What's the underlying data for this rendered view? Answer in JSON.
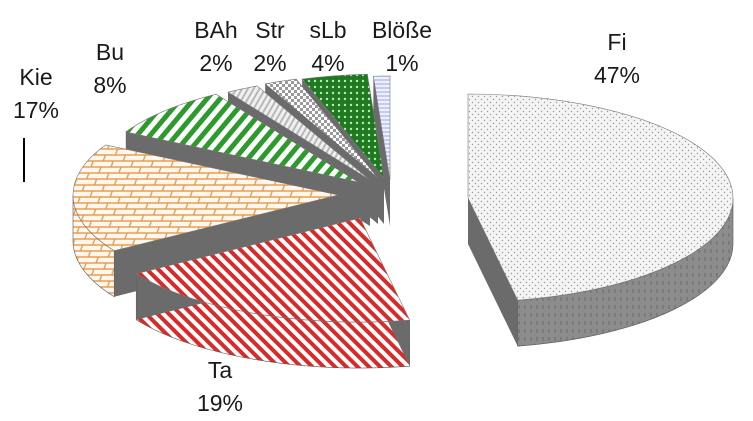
{
  "chart_data": {
    "type": "pie",
    "title": "",
    "categories": [
      "Fi",
      "Ta",
      "Kie",
      "Bu",
      "BAh",
      "Str",
      "sLb",
      "Blöße"
    ],
    "values": [
      47,
      19,
      17,
      8,
      2,
      2,
      4,
      1
    ],
    "value_labels": [
      "47%",
      "19%",
      "17%",
      "8%",
      "2%",
      "2%",
      "4%",
      "1%"
    ],
    "colors": {
      "Fi": "#bdbdbd",
      "Ta": "#d92a2a",
      "Kie": "#e39a4a",
      "Bu": "#2e9a2e",
      "BAh": "#a6a6a6",
      "Str": "#9a9a9a",
      "sLb": "#1f7a1f",
      "Blöße": "#9aa6e6"
    },
    "exploded": true,
    "three_d": true
  }
}
